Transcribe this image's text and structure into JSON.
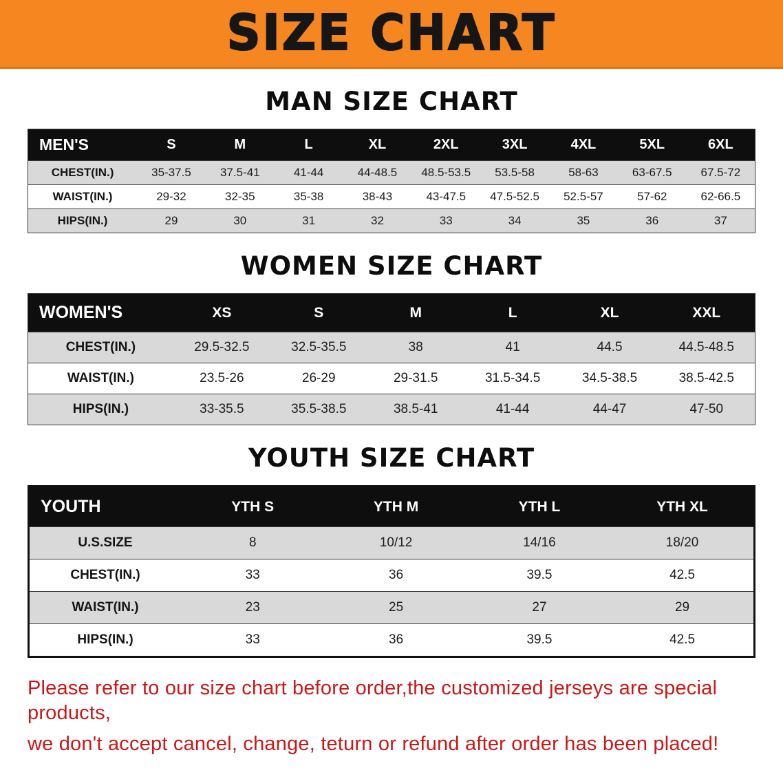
{
  "banner": {
    "title": "SIZE CHART"
  },
  "accent_colors": {
    "banner_orange": "#f6861f",
    "header_black": "#0e0e0e",
    "row_gray": "#d9d9d9",
    "disclaimer_red": "#cc1717"
  },
  "sections": [
    {
      "heading": "MAN SIZE CHART",
      "table": {
        "header": [
          "MEN'S",
          "S",
          "M",
          "L",
          "XL",
          "2XL",
          "3XL",
          "4XL",
          "5XL",
          "6XL"
        ],
        "rows": [
          [
            "CHEST(IN.)",
            "35-37.5",
            "37.5-41",
            "41-44",
            "44-48.5",
            "48.5-53.5",
            "53.5-58",
            "58-63",
            "63-67.5",
            "67.5-72"
          ],
          [
            "WAIST(IN.)",
            "29-32",
            "32-35",
            "35-38",
            "38-43",
            "43-47.5",
            "47.5-52.5",
            "52.5-57",
            "57-62",
            "62-66.5"
          ],
          [
            "HIPS(IN.)",
            "29",
            "30",
            "31",
            "32",
            "33",
            "34",
            "35",
            "36",
            "37"
          ]
        ]
      }
    },
    {
      "heading": "WOMEN SIZE CHART",
      "table": {
        "header": [
          "WOMEN'S",
          "XS",
          "S",
          "M",
          "L",
          "XL",
          "XXL"
        ],
        "rows": [
          [
            "CHEST(IN.)",
            "29.5-32.5",
            "32.5-35.5",
            "38",
            "41",
            "44.5",
            "44.5-48.5"
          ],
          [
            "WAIST(IN.)",
            "23.5-26",
            "26-29",
            "29-31.5",
            "31.5-34.5",
            "34.5-38.5",
            "38.5-42.5"
          ],
          [
            "HIPS(IN.)",
            "33-35.5",
            "35.5-38.5",
            "38.5-41",
            "41-44",
            "44-47",
            "47-50"
          ]
        ]
      }
    },
    {
      "heading": "YOUTH SIZE CHART",
      "table": {
        "header": [
          "YOUTH",
          "YTH S",
          "YTH M",
          "YTH L",
          "YTH XL"
        ],
        "rows": [
          [
            "U.S.SIZE",
            "8",
            "10/12",
            "14/16",
            "18/20"
          ],
          [
            "CHEST(IN.)",
            "33",
            "36",
            "39.5",
            "42.5"
          ],
          [
            "WAIST(IN.)",
            "23",
            "25",
            "27",
            "29"
          ],
          [
            "HIPS(IN.)",
            "33",
            "36",
            "39.5",
            "42.5"
          ]
        ]
      }
    }
  ],
  "disclaimer": {
    "line1": "Please refer to our size chart before order,the customized jerseys are special products,",
    "line2": "we don't accept cancel, change, teturn or refund after order has been placed!"
  }
}
